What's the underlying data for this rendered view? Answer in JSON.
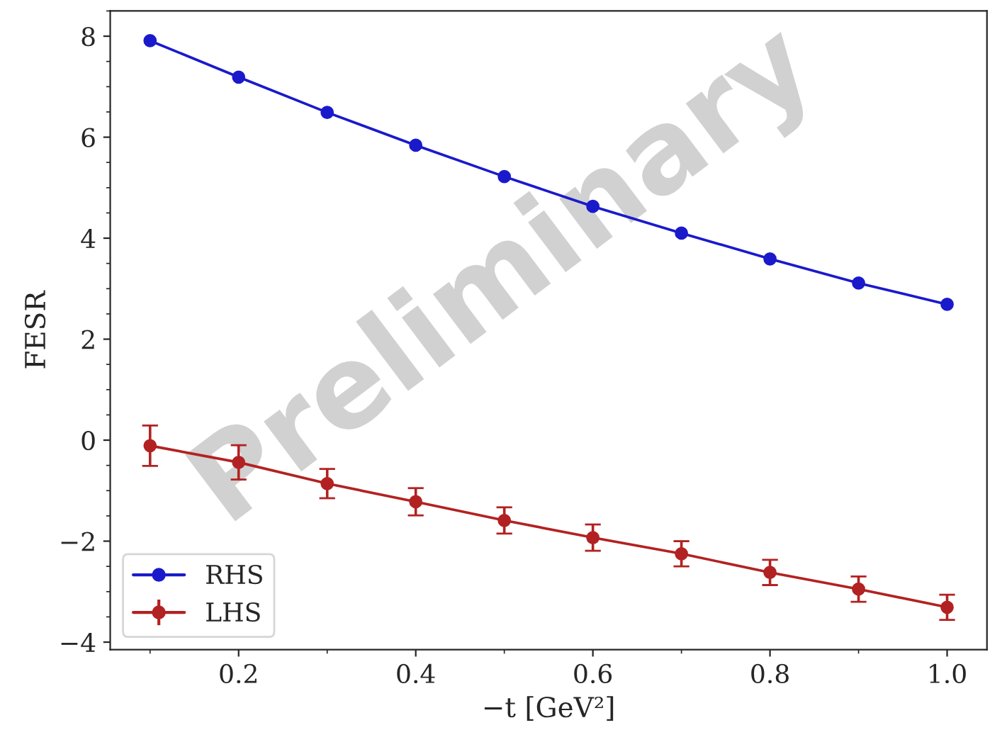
{
  "chart_data": {
    "type": "line",
    "xlabel": "−t [GeV²]",
    "ylabel": "FESR",
    "x": [
      0.1,
      0.2,
      0.3,
      0.4,
      0.5,
      0.6,
      0.7,
      0.8,
      0.9,
      1.0
    ],
    "series": [
      {
        "name": "RHS",
        "color": "#1a1acc",
        "values": [
          7.91,
          7.19,
          6.49,
          5.84,
          5.22,
          4.63,
          4.1,
          3.59,
          3.11,
          2.69
        ]
      },
      {
        "name": "LHS",
        "color": "#b22222",
        "values": [
          -0.11,
          -0.44,
          -0.86,
          -1.22,
          -1.59,
          -1.93,
          -2.25,
          -2.62,
          -2.95,
          -3.31
        ],
        "errors": [
          0.4,
          0.34,
          0.29,
          0.27,
          0.26,
          0.26,
          0.25,
          0.25,
          0.25,
          0.25
        ]
      }
    ],
    "xlim": [
      0.055,
      1.045
    ],
    "ylim": [
      -4.15,
      8.5
    ],
    "xticks": [
      0.2,
      0.4,
      0.6,
      0.8,
      {
        "value": 1.0,
        "label": "1.0"
      }
    ],
    "yticks": [
      {
        "value": -4,
        "label": "−4"
      },
      {
        "value": -2,
        "label": "−2"
      },
      0,
      2,
      4,
      6,
      8
    ],
    "marker": "circle",
    "line_style": "solid",
    "grid": false,
    "legend": "bottom left",
    "annotations": [
      "Preliminary"
    ]
  }
}
